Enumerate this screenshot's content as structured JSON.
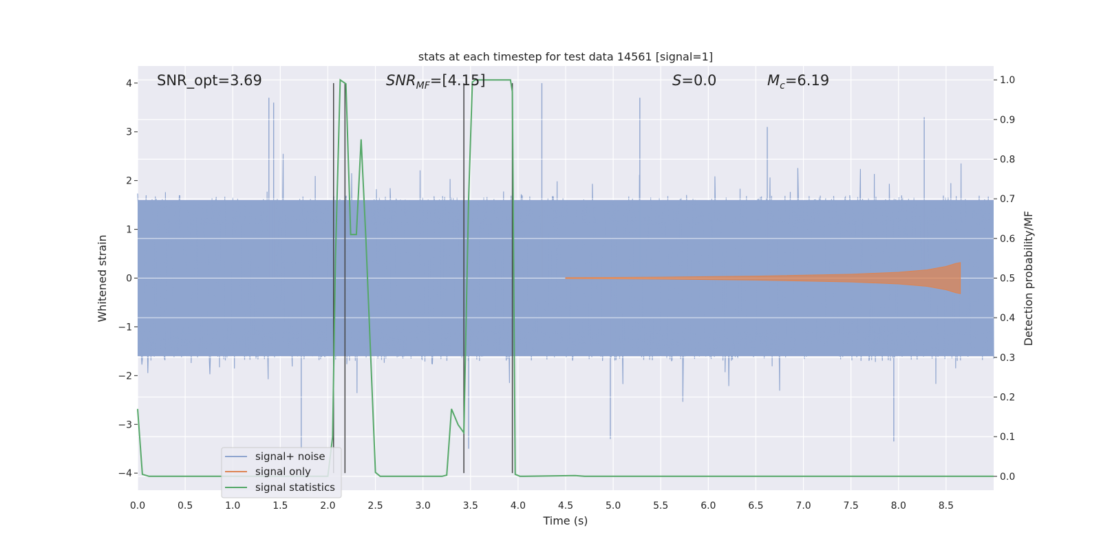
{
  "chart_data": {
    "type": "line",
    "title": "stats at each timestep for test data 14561 [signal=1]",
    "xlabel": "Time (s)",
    "ylabel_left": "Whitened strain",
    "ylabel_right": "Detection probability/MF",
    "xlim": [
      0,
      9.0
    ],
    "ylim_left": [
      -4.35,
      4.35
    ],
    "ylim_right": [
      -0.035,
      1.035
    ],
    "x_ticks": [
      "0.0",
      "0.5",
      "1.0",
      "1.5",
      "2.0",
      "2.5",
      "3.0",
      "3.5",
      "4.0",
      "4.5",
      "5.0",
      "5.5",
      "6.0",
      "6.5",
      "7.0",
      "7.5",
      "8.0",
      "8.5"
    ],
    "y_ticks_left": [
      "−4",
      "−3",
      "−2",
      "−1",
      "0",
      "1",
      "2",
      "3",
      "4"
    ],
    "y_ticks_right": [
      "0.0",
      "0.1",
      "0.2",
      "0.3",
      "0.4",
      "0.5",
      "0.6",
      "0.7",
      "0.8",
      "0.9",
      "1.0"
    ],
    "grid": true,
    "legend_position": "lower-left",
    "annotations": {
      "snr_opt": "SNR_opt=3.69",
      "snr_mf_main": "SNR",
      "snr_mf_sub": "MF",
      "snr_mf_value": "=[4.15]",
      "s_main": "S",
      "s_value": "=0.0",
      "mc_main": "M",
      "mc_sub": "c",
      "mc_value": "=6.19"
    },
    "series": [
      {
        "name": "signal+ noise",
        "color": "#8fa5cf",
        "description": "noisy whitened strain, roughly gaussian, spikes up to about ±3.7",
        "envelope": 1.6,
        "peaks": [
          {
            "x": 1.38,
            "y": 3.7
          },
          {
            "x": 1.43,
            "y": 3.6
          },
          {
            "x": 4.25,
            "y": 4.0
          },
          {
            "x": 5.28,
            "y": 3.7
          },
          {
            "x": 6.62,
            "y": 3.1
          },
          {
            "x": 8.27,
            "y": 3.3
          },
          {
            "x": 1.72,
            "y": -3.5
          },
          {
            "x": 3.48,
            "y": -3.5
          },
          {
            "x": 4.97,
            "y": -3.3
          },
          {
            "x": 7.95,
            "y": -3.35
          }
        ]
      },
      {
        "name": "signal only",
        "color": "#dd8452",
        "description": "chirp growing from 4.5 s to 8.65 s, amplitude up to about 0.32",
        "x": [
          4.5,
          5.5,
          6.5,
          7.5,
          8.0,
          8.3,
          8.5,
          8.6,
          8.65
        ],
        "amplitude": [
          0.01,
          0.02,
          0.04,
          0.08,
          0.12,
          0.17,
          0.24,
          0.3,
          0.32
        ]
      },
      {
        "name": "signal statistics",
        "color": "#55a868",
        "axis": "right",
        "x": [
          0.0,
          0.05,
          0.12,
          2.0,
          2.05,
          2.08,
          2.13,
          2.19,
          2.24,
          2.3,
          2.35,
          2.4,
          2.5,
          2.55,
          2.6,
          3.2,
          3.25,
          3.3,
          3.37,
          3.43,
          3.48,
          3.52,
          3.55,
          3.92,
          3.94,
          3.97,
          4.02,
          4.6,
          4.7,
          9.0
        ],
        "values": [
          0.17,
          0.005,
          0.0,
          0.0,
          0.1,
          0.55,
          1.0,
          0.99,
          0.61,
          0.61,
          0.85,
          0.6,
          0.01,
          0.0,
          0.0,
          0.0,
          0.003,
          0.17,
          0.13,
          0.11,
          0.7,
          0.995,
          1.0,
          1.0,
          0.97,
          0.005,
          0.0,
          0.002,
          0.0,
          0.0
        ]
      }
    ],
    "vertical_lines_x": [
      2.06,
      2.18,
      3.43,
      3.94
    ]
  }
}
